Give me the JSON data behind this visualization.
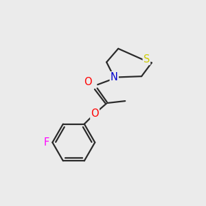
{
  "background_color": "#ebebeb",
  "atom_colors": {
    "C": "#000000",
    "O": "#ff0000",
    "N": "#0000cc",
    "S": "#cccc00",
    "F": "#ff00ff"
  },
  "bond_color": "#2a2a2a",
  "bond_width": 1.6,
  "font_size_atoms": 10.5
}
